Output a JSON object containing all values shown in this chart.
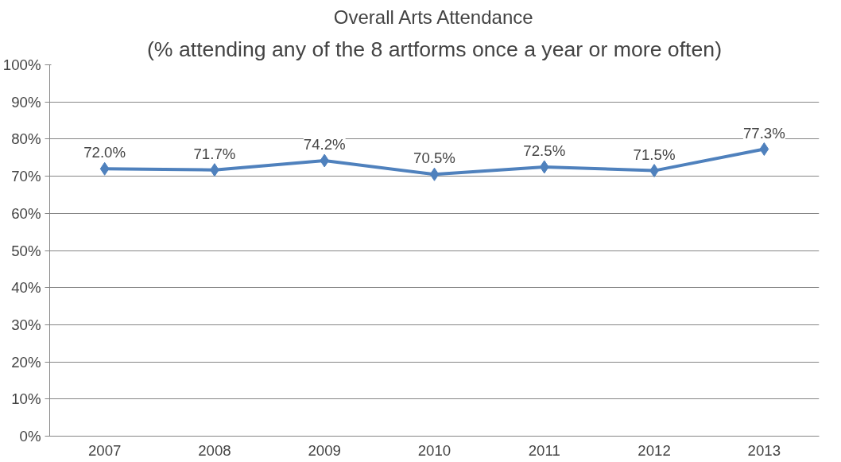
{
  "chart_data": {
    "type": "line",
    "title": "Overall Arts Attendance",
    "subtitle": "(% attending any of the 8 artforms once a year or more often)",
    "categories": [
      "2007",
      "2008",
      "2009",
      "2010",
      "2011",
      "2012",
      "2013"
    ],
    "series": [
      {
        "color": "#4f81bd",
        "values": [
          72.0,
          71.7,
          74.2,
          70.5,
          72.5,
          71.5,
          77.3
        ],
        "value_labels": [
          "72.0%",
          "71.7%",
          "74.2%",
          "70.5%",
          "72.5%",
          "71.5%",
          "77.3%"
        ]
      }
    ],
    "ylim": [
      0,
      100
    ],
    "yticks": [
      {
        "value": 0,
        "label": "0%"
      },
      {
        "value": 10,
        "label": "10%"
      },
      {
        "value": 20,
        "label": "20%"
      },
      {
        "value": 30,
        "label": "30%"
      },
      {
        "value": 40,
        "label": "40%"
      },
      {
        "value": 50,
        "label": "50%"
      },
      {
        "value": 60,
        "label": "60%"
      },
      {
        "value": 70,
        "label": "70%"
      },
      {
        "value": 80,
        "label": "80%"
      },
      {
        "value": 90,
        "label": "90%"
      },
      {
        "value": 100,
        "label": "100%"
      }
    ],
    "grid": "y",
    "marker": "diamond",
    "line_style": "solid"
  }
}
